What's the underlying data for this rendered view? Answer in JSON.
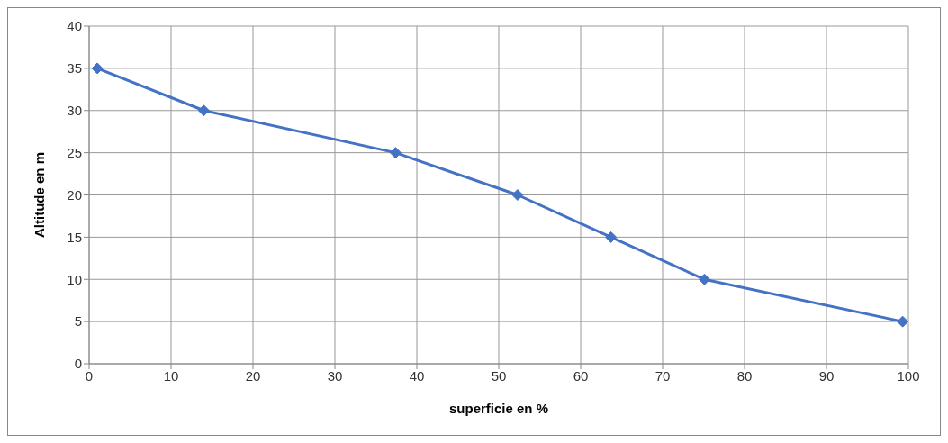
{
  "chart_data": {
    "type": "line",
    "xlabel": "superficie en %",
    "ylabel": "Altitude en m",
    "x": [
      1,
      14,
      37.4,
      52.3,
      63.7,
      75.1,
      99.3
    ],
    "series": [
      {
        "color": "#4472c4",
        "values": [
          35,
          30,
          25,
          20,
          15,
          10,
          5
        ]
      }
    ],
    "xlim": [
      0,
      100
    ],
    "xticks": [
      0,
      10,
      20,
      30,
      40,
      50,
      60,
      70,
      80,
      90,
      100
    ],
    "ylim": [
      0,
      40
    ],
    "yticks": [
      0,
      5,
      10,
      15,
      20,
      25,
      30,
      35,
      40
    ],
    "grid": true,
    "marker": "diamond",
    "line_style": "solid",
    "legend": false
  }
}
